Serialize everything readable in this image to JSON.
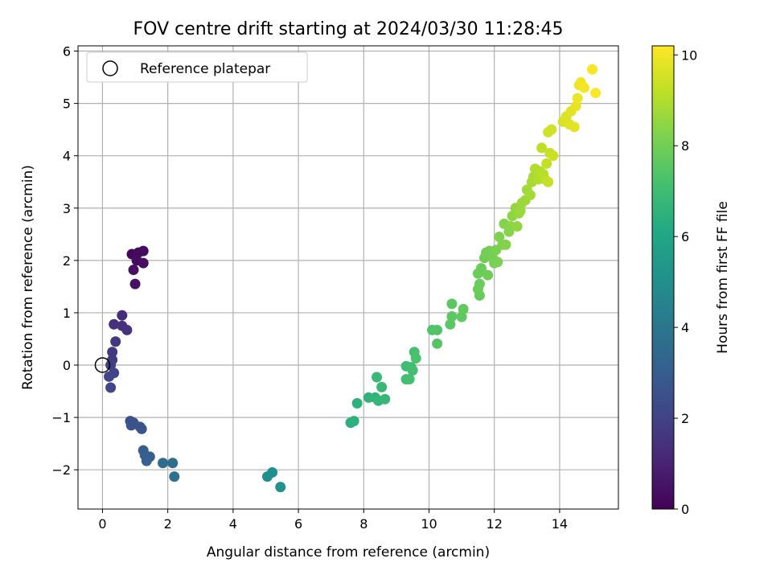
{
  "chart_data": {
    "type": "scatter",
    "title": "FOV centre drift starting at 2024/03/30 11:28:45",
    "xlabel": "Angular distance from reference (arcmin)",
    "ylabel": "Rotation from reference (arcmin)",
    "xlim": [
      -0.75,
      15.8
    ],
    "ylim": [
      -2.75,
      6.1
    ],
    "xticks": [
      0,
      2,
      4,
      6,
      8,
      10,
      12,
      14
    ],
    "yticks": [
      -2,
      -1,
      0,
      1,
      2,
      3,
      4,
      5,
      6
    ],
    "grid": true,
    "legend": {
      "position": "top-left",
      "entries": [
        "Reference platepar"
      ]
    },
    "reference": {
      "x": 0,
      "y": 0
    },
    "colorbar": {
      "label": "Hours from first FF file",
      "colormap": "viridis",
      "range": [
        0,
        10.2
      ],
      "ticks": [
        0,
        2,
        4,
        6,
        8,
        10
      ]
    },
    "points": [
      [
        0.9,
        2.12,
        0.2
      ],
      [
        1.1,
        2.15,
        0.25
      ],
      [
        1.25,
        2.18,
        0.3
      ],
      [
        1.05,
        2.0,
        0.35
      ],
      [
        1.25,
        1.95,
        0.4
      ],
      [
        0.95,
        1.82,
        0.45
      ],
      [
        1.0,
        1.55,
        0.5
      ],
      [
        0.6,
        0.95,
        1.3
      ],
      [
        0.35,
        0.78,
        1.4
      ],
      [
        0.6,
        0.75,
        1.45
      ],
      [
        0.75,
        0.67,
        1.5
      ],
      [
        0.4,
        0.45,
        1.6
      ],
      [
        0.3,
        0.25,
        1.7
      ],
      [
        0.3,
        0.1,
        1.8
      ],
      [
        0.25,
        0.0,
        1.9
      ],
      [
        0.35,
        -0.15,
        2.0
      ],
      [
        0.2,
        -0.22,
        2.05
      ],
      [
        0.25,
        -0.43,
        2.1
      ],
      [
        0.85,
        -1.07,
        2.5
      ],
      [
        0.95,
        -1.1,
        2.55
      ],
      [
        0.88,
        -1.15,
        2.6
      ],
      [
        1.15,
        -1.18,
        2.65
      ],
      [
        1.2,
        -1.22,
        2.7
      ],
      [
        1.25,
        -1.63,
        3.0
      ],
      [
        1.3,
        -1.72,
        3.05
      ],
      [
        1.45,
        -1.75,
        3.1
      ],
      [
        1.35,
        -1.83,
        3.15
      ],
      [
        1.85,
        -1.87,
        3.6
      ],
      [
        2.15,
        -1.87,
        3.7
      ],
      [
        2.2,
        -2.13,
        3.8
      ],
      [
        5.05,
        -2.13,
        5.0
      ],
      [
        5.2,
        -2.05,
        5.05
      ],
      [
        5.45,
        -2.33,
        5.15
      ],
      [
        7.6,
        -1.1,
        6.4
      ],
      [
        7.7,
        -1.07,
        6.45
      ],
      [
        7.8,
        -0.73,
        6.5
      ],
      [
        8.15,
        -0.62,
        6.6
      ],
      [
        8.35,
        -0.62,
        6.65
      ],
      [
        8.45,
        -0.68,
        6.7
      ],
      [
        8.65,
        -0.65,
        6.75
      ],
      [
        8.55,
        -0.42,
        6.8
      ],
      [
        8.4,
        -0.23,
        6.85
      ],
      [
        9.3,
        -0.02,
        7.0
      ],
      [
        9.45,
        -0.04,
        7.05
      ],
      [
        9.5,
        -0.1,
        7.1
      ],
      [
        9.3,
        -0.27,
        7.1
      ],
      [
        9.4,
        -0.27,
        7.15
      ],
      [
        9.55,
        0.25,
        7.2
      ],
      [
        9.6,
        0.13,
        7.25
      ],
      [
        10.1,
        0.67,
        7.35
      ],
      [
        10.25,
        0.67,
        7.4
      ],
      [
        10.25,
        0.41,
        7.45
      ],
      [
        10.65,
        0.78,
        7.55
      ],
      [
        10.7,
        0.93,
        7.6
      ],
      [
        10.7,
        1.17,
        7.6
      ],
      [
        11.0,
        0.92,
        7.65
      ],
      [
        11.05,
        1.07,
        7.7
      ],
      [
        11.55,
        1.33,
        7.8
      ],
      [
        11.5,
        1.45,
        7.85
      ],
      [
        11.55,
        1.55,
        7.85
      ],
      [
        11.5,
        1.75,
        7.9
      ],
      [
        11.6,
        1.85,
        7.9
      ],
      [
        11.7,
        2.05,
        7.95
      ],
      [
        11.8,
        1.72,
        7.95
      ],
      [
        11.75,
        2.15,
        8.0
      ],
      [
        11.85,
        2.18,
        8.0
      ],
      [
        11.95,
        2.05,
        8.05
      ],
      [
        12.0,
        1.95,
        8.1
      ],
      [
        12.1,
        1.97,
        8.15
      ],
      [
        12.05,
        2.2,
        8.15
      ],
      [
        12.15,
        2.45,
        8.2
      ],
      [
        12.25,
        2.3,
        8.25
      ],
      [
        12.35,
        2.3,
        8.3
      ],
      [
        12.3,
        2.7,
        8.3
      ],
      [
        12.45,
        2.55,
        8.35
      ],
      [
        12.5,
        2.65,
        8.4
      ],
      [
        12.55,
        2.85,
        8.45
      ],
      [
        12.7,
        2.65,
        8.5
      ],
      [
        12.65,
        3.0,
        8.55
      ],
      [
        12.75,
        2.9,
        8.6
      ],
      [
        12.85,
        3.1,
        8.65
      ],
      [
        12.8,
        2.95,
        8.65
      ],
      [
        12.95,
        3.15,
        8.7
      ],
      [
        13.0,
        3.35,
        8.75
      ],
      [
        13.1,
        3.25,
        8.8
      ],
      [
        13.15,
        3.5,
        8.85
      ],
      [
        13.2,
        3.6,
        8.9
      ],
      [
        13.25,
        3.75,
        8.95
      ],
      [
        13.35,
        3.55,
        9.0
      ],
      [
        13.4,
        3.7,
        9.05
      ],
      [
        13.5,
        3.65,
        9.1
      ],
      [
        13.55,
        3.55,
        9.15
      ],
      [
        13.45,
        4.15,
        9.2
      ],
      [
        13.6,
        3.85,
        9.25
      ],
      [
        13.65,
        3.5,
        9.3
      ],
      [
        13.7,
        4.05,
        9.35
      ],
      [
        13.8,
        4.0,
        9.4
      ],
      [
        13.65,
        4.45,
        9.45
      ],
      [
        13.75,
        4.5,
        9.5
      ],
      [
        14.1,
        4.65,
        9.6
      ],
      [
        14.2,
        4.75,
        9.65
      ],
      [
        14.3,
        4.6,
        9.7
      ],
      [
        14.35,
        4.85,
        9.75
      ],
      [
        14.45,
        4.55,
        9.8
      ],
      [
        14.5,
        4.95,
        9.85
      ],
      [
        14.55,
        5.1,
        9.9
      ],
      [
        14.6,
        5.35,
        9.95
      ],
      [
        14.65,
        5.4,
        10.0
      ],
      [
        14.75,
        5.3,
        10.05
      ],
      [
        15.0,
        5.65,
        10.1
      ],
      [
        15.1,
        5.2,
        10.15
      ]
    ]
  }
}
